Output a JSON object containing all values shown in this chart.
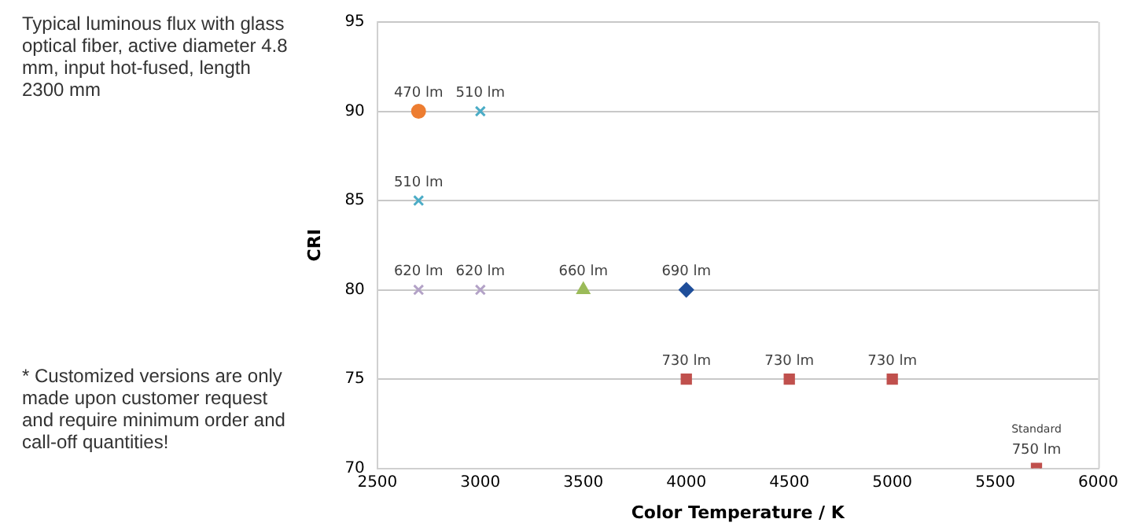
{
  "chart_data": {
    "type": "scatter",
    "title": "Typical luminous flux with glass optical fiber, active diameter 4.8 mm, input hot-fused, length 2300 mm",
    "xlabel": "Color Temperature / K",
    "ylabel": "CRI",
    "xlim": [
      2500,
      6000
    ],
    "xticks": [
      2500,
      3000,
      3500,
      4000,
      4500,
      5000,
      5500,
      6000
    ],
    "ylim": [
      70,
      95
    ],
    "yticks": [
      70,
      75,
      80,
      85,
      90,
      95
    ],
    "grid": "y",
    "legend": false,
    "series": [
      {
        "color": "#ed7d31",
        "marker": "circle",
        "x": [
          2700
        ],
        "values": [
          90
        ]
      },
      {
        "color": "#4bacc6",
        "marker": "cross",
        "x": [
          3000,
          2700
        ],
        "values": [
          90,
          85
        ]
      },
      {
        "color": "#b3a2c7",
        "marker": "cross",
        "x": [
          2700,
          3000
        ],
        "values": [
          80,
          80
        ]
      },
      {
        "color": "#9bbb59",
        "marker": "triangle",
        "x": [
          3500
        ],
        "values": [
          80
        ]
      },
      {
        "color": "#1f4e9a",
        "marker": "diamond",
        "x": [
          4000
        ],
        "values": [
          80
        ]
      },
      {
        "color": "#c0504d",
        "marker": "square",
        "x": [
          4000,
          4500,
          5000,
          5700
        ],
        "values": [
          75,
          75,
          75,
          70
        ]
      }
    ],
    "annotations": [
      {
        "text": "470 lm",
        "x": 2700,
        "y": 90
      },
      {
        "text": "510 lm",
        "x": 3000,
        "y": 90
      },
      {
        "text": "510 lm",
        "x": 2700,
        "y": 85
      },
      {
        "text": "620 lm",
        "x": 2700,
        "y": 80
      },
      {
        "text": "620 lm",
        "x": 3000,
        "y": 80
      },
      {
        "text": "660 lm",
        "x": 3500,
        "y": 80
      },
      {
        "text": "690 lm",
        "x": 4000,
        "y": 80
      },
      {
        "text": "730 lm",
        "x": 4000,
        "y": 75
      },
      {
        "text": "730 lm",
        "x": 4500,
        "y": 75
      },
      {
        "text": "730 lm",
        "x": 5000,
        "y": 75
      },
      {
        "text": "750 lm",
        "x": 5700,
        "y": 70
      },
      {
        "text": "Standard",
        "x": 5700,
        "y": 70
      },
      "* Customized versions are only made upon customer request and require minimum order and call-off quantities!"
    ]
  }
}
